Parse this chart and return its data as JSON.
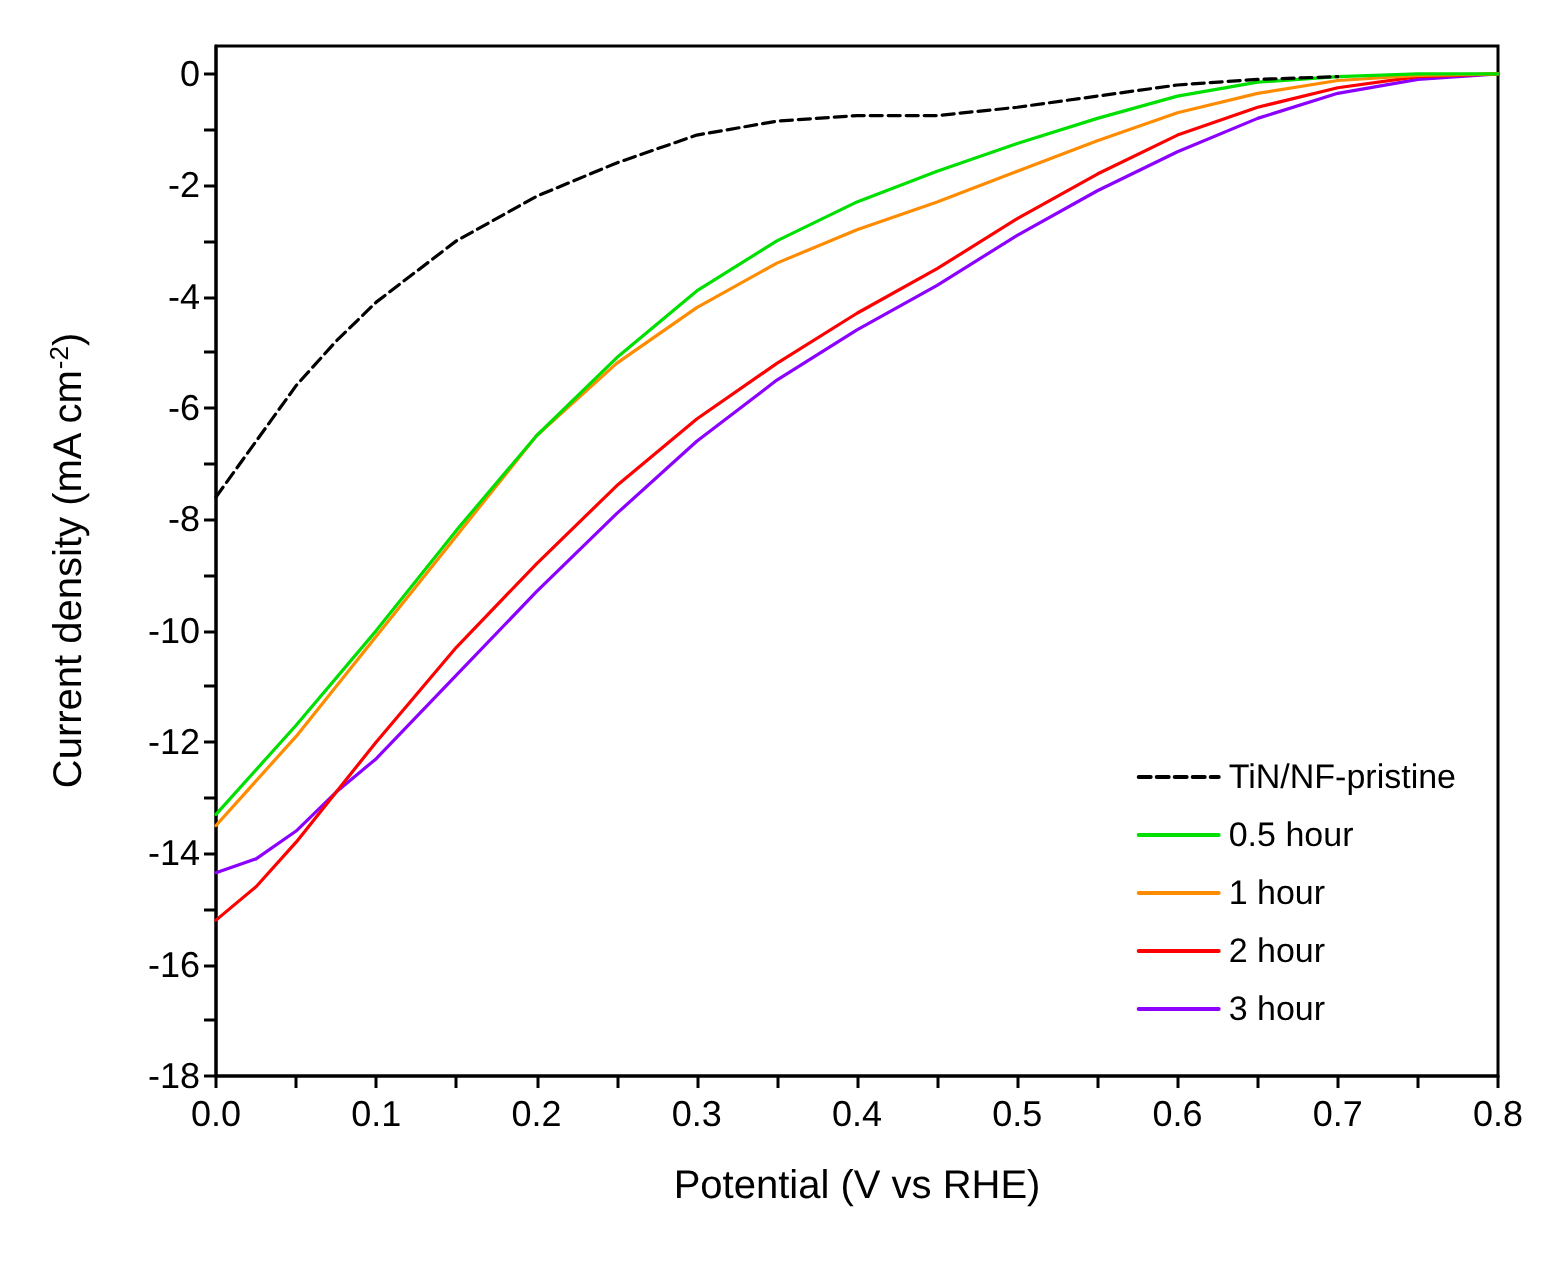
{
  "chart_data": {
    "type": "line",
    "xlabel": "Potential (V vs RHE)",
    "ylabel": "Current density (mA cm$^{-2}$)",
    "xlim": [
      0,
      0.8
    ],
    "ylim": [
      -18,
      0.5
    ],
    "xticks": [
      {
        "value": 0,
        "label": "0.0"
      },
      {
        "value": 0.05,
        "label": null
      },
      0.1,
      {
        "value": 0.15,
        "label": null
      },
      0.2,
      {
        "value": 0.25,
        "label": null
      },
      0.3,
      {
        "value": 0.35,
        "label": null
      },
      0.4,
      {
        "value": 0.45,
        "label": null
      },
      0.5,
      {
        "value": 0.55,
        "label": null
      },
      0.6,
      {
        "value": 0.65,
        "label": null
      },
      0.7,
      {
        "value": 0.75,
        "label": null
      },
      0.8
    ],
    "yticks": [
      -18,
      {
        "value": -17,
        "label": null
      },
      -16,
      {
        "value": -15,
        "label": null
      },
      -14,
      {
        "value": -13,
        "label": null
      },
      -12,
      {
        "value": -11,
        "label": null
      },
      -10,
      {
        "value": -9,
        "label": null
      },
      -8,
      {
        "value": -7,
        "label": null
      },
      -6,
      {
        "value": -5,
        "label": null
      },
      -4,
      {
        "value": -3,
        "label": null
      },
      -2,
      {
        "value": -1,
        "label": null
      },
      0
    ],
    "grid": false,
    "legend": "bottom right",
    "marker": "none",
    "series": [
      {
        "name": "TiN/NF-pristine",
        "color": "#000000",
        "line_style": "dashed",
        "x": [
          0,
          0.025,
          0.05,
          0.075,
          0.1,
          0.15,
          0.2,
          0.25,
          0.3,
          0.35,
          0.4,
          0.45,
          0.5,
          0.55,
          0.6,
          0.65,
          0.7
        ],
        "values": [
          -7.6,
          -6.6,
          -5.6,
          -4.8,
          -4.1,
          -3.0,
          -2.2,
          -1.6,
          -1.1,
          -0.85,
          -0.75,
          -0.75,
          -0.6,
          -0.4,
          -0.2,
          -0.1,
          -0.05
        ]
      },
      {
        "name": "0.5 hour",
        "color": "#00e000",
        "line_style": "solid",
        "x": [
          0,
          0.05,
          0.1,
          0.15,
          0.2,
          0.25,
          0.3,
          0.35,
          0.4,
          0.45,
          0.5,
          0.55,
          0.6,
          0.65,
          0.7,
          0.75,
          0.8
        ],
        "values": [
          -13.3,
          -11.7,
          -10.0,
          -8.2,
          -6.5,
          -5.1,
          -3.9,
          -3.0,
          -2.3,
          -1.75,
          -1.25,
          -0.8,
          -0.4,
          -0.15,
          -0.05,
          0,
          0
        ]
      },
      {
        "name": "1 hour",
        "color": "#ff8c00",
        "line_style": "solid",
        "x": [
          0,
          0.05,
          0.1,
          0.15,
          0.2,
          0.25,
          0.3,
          0.35,
          0.4,
          0.45,
          0.5,
          0.55,
          0.6,
          0.65,
          0.7,
          0.75,
          0.8
        ],
        "values": [
          -13.5,
          -11.9,
          -10.1,
          -8.3,
          -6.5,
          -5.2,
          -4.2,
          -3.4,
          -2.8,
          -2.3,
          -1.75,
          -1.2,
          -0.7,
          -0.35,
          -0.12,
          -0.03,
          0
        ]
      },
      {
        "name": "2 hour",
        "color": "#ff0000",
        "line_style": "solid",
        "x": [
          0,
          0.025,
          0.05,
          0.1,
          0.15,
          0.2,
          0.25,
          0.3,
          0.35,
          0.4,
          0.45,
          0.5,
          0.55,
          0.6,
          0.65,
          0.7,
          0.75,
          0.8
        ],
        "values": [
          -15.2,
          -14.6,
          -13.8,
          -12.0,
          -10.3,
          -8.8,
          -7.4,
          -6.2,
          -5.2,
          -4.3,
          -3.5,
          -2.6,
          -1.8,
          -1.1,
          -0.6,
          -0.25,
          -0.05,
          0
        ]
      },
      {
        "name": "3 hour",
        "color": "#8b00ff",
        "line_style": "solid",
        "x": [
          0,
          0.025,
          0.05,
          0.075,
          0.1,
          0.15,
          0.2,
          0.25,
          0.3,
          0.35,
          0.4,
          0.45,
          0.5,
          0.55,
          0.6,
          0.65,
          0.7,
          0.75,
          0.8
        ],
        "values": [
          -14.35,
          -14.1,
          -13.6,
          -12.9,
          -12.3,
          -10.8,
          -9.3,
          -7.9,
          -6.6,
          -5.5,
          -4.6,
          -3.8,
          -2.9,
          -2.1,
          -1.4,
          -0.8,
          -0.35,
          -0.1,
          0
        ]
      }
    ]
  }
}
